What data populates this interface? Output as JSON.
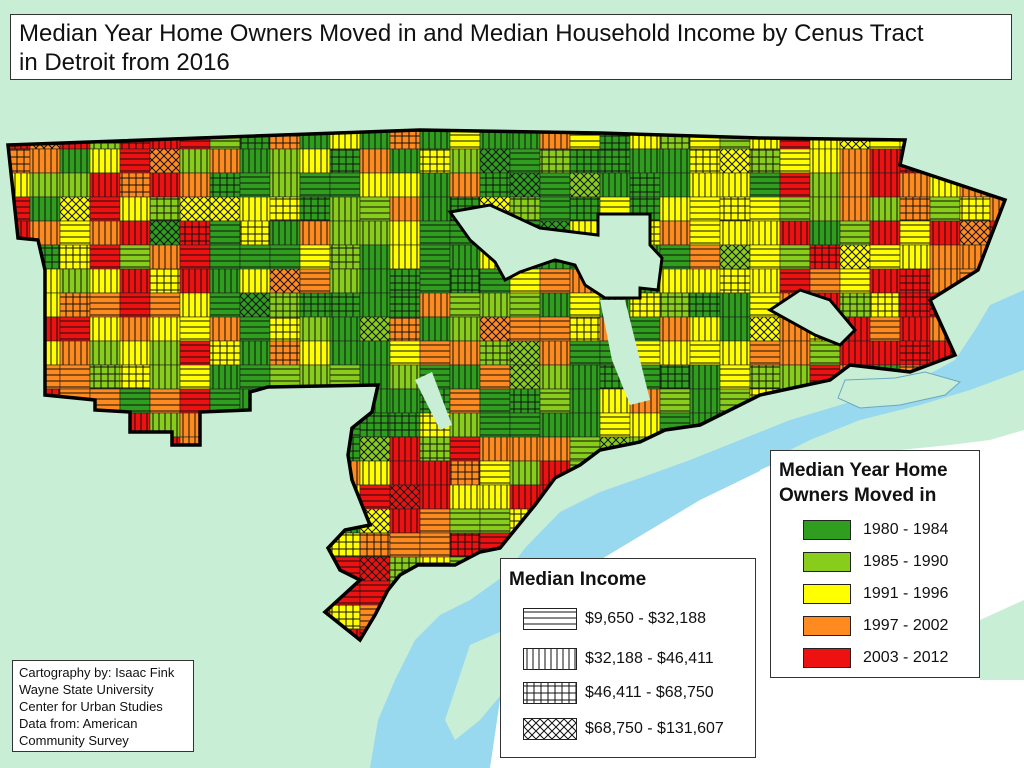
{
  "title": {
    "line1": "Median Year Home Owners Moved in and Median Household Income by Cenus Tract",
    "line2": "in Detroit from 2016"
  },
  "colors": {
    "background_land": "#c8eed6",
    "water": "#99d9ef",
    "canada_land": "#ffffff"
  },
  "year_legend": {
    "title_line1": "Median Year Home",
    "title_line2": "Owners Moved in",
    "items": [
      {
        "label": "1980 - 1984",
        "color": "#2f9e1f"
      },
      {
        "label": "1985 - 1990",
        "color": "#88cc1c"
      },
      {
        "label": "1991 - 1996",
        "color": "#ffff00"
      },
      {
        "label": "1997 - 2002",
        "color": "#ff8a1f"
      },
      {
        "label": "2003 - 2012",
        "color": "#ee1111"
      }
    ]
  },
  "income_legend": {
    "title": "Median Income",
    "items": [
      {
        "label": "$9,650 - $32,188",
        "pattern": "horizontal-lines"
      },
      {
        "label": "$32,188 - $46,411",
        "pattern": "vertical-lines"
      },
      {
        "label": "$46,411 - $68,750",
        "pattern": "grid"
      },
      {
        "label": "$68,750 - $131,607",
        "pattern": "crosshatch"
      }
    ]
  },
  "credits": {
    "lines": [
      "Cartography by: Isaac Fink",
      "Wayne State University",
      "Center for Urban Studies",
      "Data from: American",
      "Community Survey"
    ]
  }
}
